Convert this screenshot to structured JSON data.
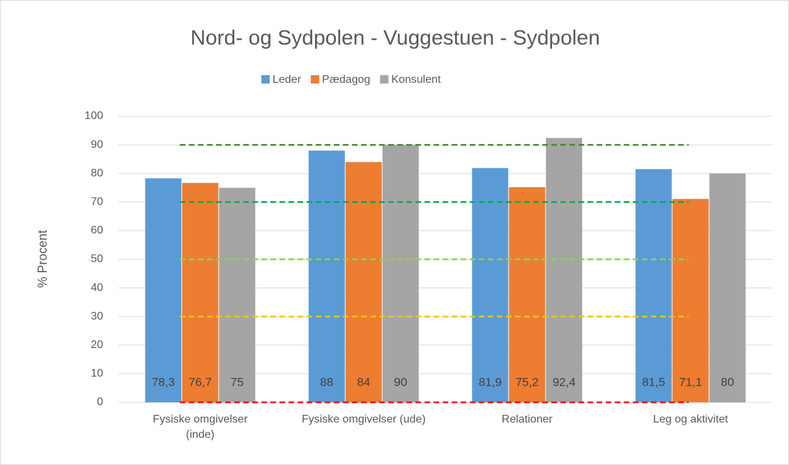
{
  "chart_data": {
    "type": "bar",
    "title": "Nord- og Sydpolen - Vuggestuen - Sydpolen",
    "y_label": "% Procent",
    "categories": [
      "Fysiske omgivelser (inde)",
      "Fysiske omgivelser (ude)",
      "Relationer",
      "Leg og aktivitet"
    ],
    "series": [
      {
        "name": "Leder",
        "color": "#5b9bd5",
        "values": [
          78.3,
          88,
          81.9,
          81.5
        ],
        "value_labels": [
          "78,3",
          "88",
          "81,9",
          "81,5"
        ]
      },
      {
        "name": "Pædagog",
        "color": "#ed7d31",
        "values": [
          76.7,
          84,
          75.2,
          71.1
        ],
        "value_labels": [
          "76,7",
          "84",
          "75,2",
          "71,1"
        ]
      },
      {
        "name": "Konsulent",
        "color": "#a5a5a5",
        "values": [
          75,
          90,
          92.4,
          80
        ],
        "value_labels": [
          "75",
          "90",
          "92,4",
          "80"
        ]
      }
    ],
    "reference_lines": [
      {
        "value": 90,
        "color": "#548235"
      },
      {
        "value": 70,
        "color": "#00b050"
      },
      {
        "value": 50,
        "color": "#92d050"
      },
      {
        "value": 30,
        "color": "#ffc000"
      },
      {
        "value": 0,
        "color": "#ff0000"
      }
    ],
    "ylim": [
      0,
      100
    ],
    "yticks": [
      0,
      10,
      20,
      30,
      40,
      50,
      60,
      70,
      80,
      90,
      100
    ],
    "grid": true,
    "legend": "top"
  }
}
